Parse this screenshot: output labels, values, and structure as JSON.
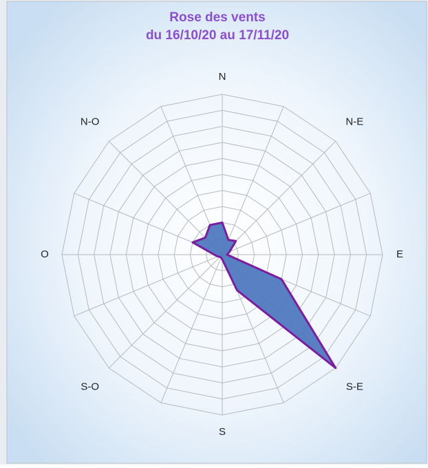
{
  "chart_data": {
    "type": "radar",
    "title": "Rose des vents",
    "subtitle": "du 16/10/20 au 17/11/20",
    "categories": [
      "N",
      null,
      "N-E",
      null,
      "E",
      null,
      "S-E",
      null,
      "S",
      null,
      "S-O",
      null,
      "O",
      null,
      "N-O",
      null
    ],
    "series": [
      {
        "color": "#4f79c0",
        "values": [
          2,
          1,
          1.2,
          0.5,
          0.3,
          4,
          10,
          2.4,
          0.3,
          0.2,
          0.2,
          0.3,
          0.5,
          2,
          1.5,
          2
        ]
      }
    ],
    "rlim": [
      0,
      10
    ],
    "rticks": [
      1,
      2,
      3,
      4,
      5,
      6,
      7,
      8,
      9,
      10
    ],
    "grid": true
  }
}
